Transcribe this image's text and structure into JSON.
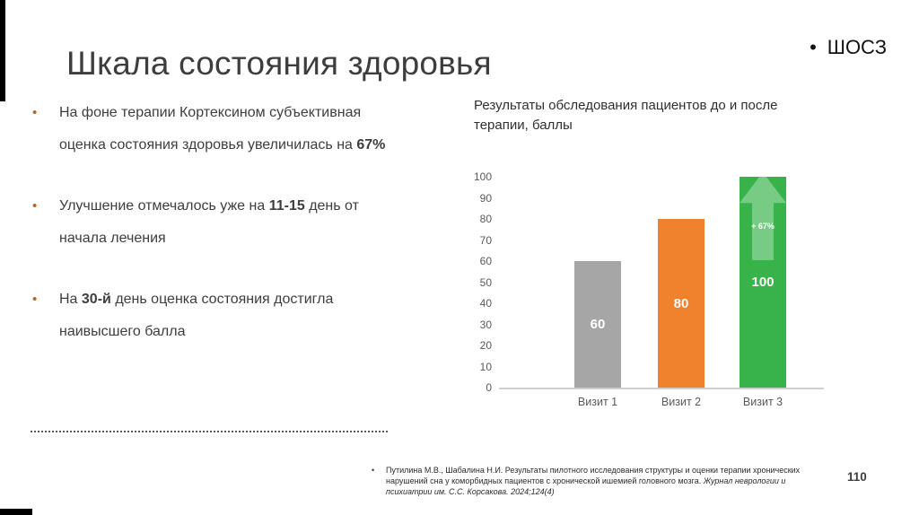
{
  "slide": {
    "title": "Шкала состояния здоровья",
    "corner_bullet": "•",
    "corner_label": "ШОСЗ",
    "page_number": "110"
  },
  "bullets": [
    {
      "marker": "•",
      "pre": "На фоне терапии Кортексином субъективная оценка состояния здоровья увеличилась на ",
      "bold": "67%",
      "post": ""
    },
    {
      "marker": "•",
      "pre": "Улучшение отмечалось уже на ",
      "bold": "11-15",
      "post": " день от начала лечения"
    },
    {
      "marker": "•",
      "pre": "На ",
      "bold": "30-й",
      "post": " день оценка состояния достигла наивысшего балла"
    }
  ],
  "footnote": {
    "marker": "•",
    "text": "Путилина М.В., Шабалина Н.И. Результаты пилотного исследования структуры и оценки терапии хронических нарушений сна у коморбидных пациентов с хронической ишемией головного мозга. ",
    "italic": "Журнал неврологии и психиатрии им. С.С. Корсакова. 2024;124(4)"
  },
  "chart_data": {
    "type": "bar",
    "title": "Результаты обследования пациентов до и после терапии, баллы",
    "categories": [
      "Визит 1",
      "Визит 2",
      "Визит 3"
    ],
    "values": [
      60,
      80,
      100
    ],
    "bar_colors": [
      "#a6a6a6",
      "#f0812d",
      "#37b34a"
    ],
    "ylim": [
      0,
      100
    ],
    "yticks": [
      0,
      10,
      20,
      30,
      40,
      50,
      60,
      70,
      80,
      90,
      100
    ],
    "grid": false,
    "legend": false,
    "annotation": {
      "text": "+ 67%",
      "bar_index": 2
    }
  }
}
